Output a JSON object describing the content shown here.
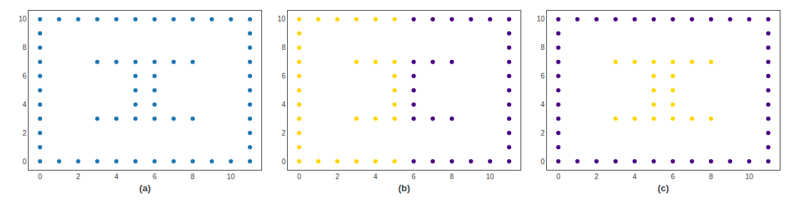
{
  "chart_data": [
    {
      "type": "scatter",
      "xlabel": "(a)",
      "series": [
        {
          "color": "#1f77b4",
          "marker": "circle",
          "x": [
            0,
            1,
            2,
            3,
            4,
            5,
            6,
            7,
            8,
            9,
            10,
            11,
            0,
            1,
            2,
            3,
            4,
            5,
            6,
            7,
            8,
            9,
            10,
            11,
            0,
            0,
            0,
            0,
            0,
            0,
            0,
            0,
            0,
            11,
            11,
            11,
            11,
            11,
            11,
            11,
            11,
            11,
            3,
            4,
            5,
            6,
            7,
            8,
            5,
            6,
            5,
            6,
            5,
            6,
            3,
            4,
            5,
            6,
            7,
            8
          ],
          "values": [
            0,
            0,
            0,
            0,
            0,
            0,
            0,
            0,
            0,
            0,
            0,
            0,
            10,
            10,
            10,
            10,
            10,
            10,
            10,
            10,
            10,
            10,
            10,
            10,
            1,
            2,
            3,
            4,
            5,
            6,
            7,
            8,
            9,
            1,
            2,
            3,
            4,
            5,
            6,
            7,
            8,
            9,
            7,
            7,
            7,
            7,
            7,
            7,
            6,
            6,
            5,
            5,
            4,
            4,
            3,
            3,
            3,
            3,
            3,
            3
          ]
        }
      ],
      "xlim": [
        -0.6,
        11.6
      ],
      "ylim": [
        -0.6,
        10.6
      ],
      "xticks": [
        0,
        2,
        4,
        6,
        8,
        10
      ],
      "yticks": [
        0,
        2,
        4,
        6,
        8,
        10
      ],
      "grid": false
    },
    {
      "type": "scatter",
      "xlabel": "(b)",
      "series": [
        {
          "color": "#FFD700",
          "marker": "circle",
          "x": [
            0,
            1,
            2,
            3,
            4,
            5,
            0,
            1,
            2,
            3,
            4,
            5,
            0,
            0,
            0,
            0,
            0,
            0,
            0,
            0,
            0,
            3,
            4,
            5,
            5,
            5,
            5,
            3,
            4,
            5
          ],
          "values": [
            0,
            0,
            0,
            0,
            0,
            0,
            10,
            10,
            10,
            10,
            10,
            10,
            1,
            2,
            3,
            4,
            5,
            6,
            7,
            8,
            9,
            7,
            7,
            7,
            6,
            5,
            4,
            3,
            3,
            3
          ]
        },
        {
          "color": "#4B0082",
          "marker": "circle",
          "x": [
            6,
            7,
            8,
            9,
            10,
            11,
            6,
            7,
            8,
            9,
            10,
            11,
            11,
            11,
            11,
            11,
            11,
            11,
            11,
            11,
            11,
            6,
            7,
            8,
            6,
            6,
            6,
            6,
            7,
            8
          ],
          "values": [
            0,
            0,
            0,
            0,
            0,
            0,
            10,
            10,
            10,
            10,
            10,
            10,
            1,
            2,
            3,
            4,
            5,
            6,
            7,
            8,
            9,
            7,
            7,
            7,
            6,
            5,
            4,
            3,
            3,
            3
          ]
        }
      ],
      "xlim": [
        -0.6,
        11.6
      ],
      "ylim": [
        -0.6,
        10.6
      ],
      "xticks": [
        0,
        2,
        4,
        6,
        8,
        10
      ],
      "yticks": [
        0,
        2,
        4,
        6,
        8,
        10
      ],
      "grid": false
    },
    {
      "type": "scatter",
      "xlabel": "(c)",
      "series": [
        {
          "color": "#FFD700",
          "marker": "circle",
          "x": [
            3,
            4,
            5,
            6,
            7,
            8,
            5,
            6,
            5,
            6,
            5,
            6,
            3,
            4,
            5,
            6,
            7,
            8
          ],
          "values": [
            7,
            7,
            7,
            7,
            7,
            7,
            6,
            6,
            5,
            5,
            4,
            4,
            3,
            3,
            3,
            3,
            3,
            3
          ]
        },
        {
          "color": "#4B0082",
          "marker": "circle",
          "x": [
            0,
            1,
            2,
            3,
            4,
            5,
            6,
            7,
            8,
            9,
            10,
            11,
            0,
            1,
            2,
            3,
            4,
            5,
            6,
            7,
            8,
            9,
            10,
            11,
            0,
            0,
            0,
            0,
            0,
            0,
            0,
            0,
            0,
            11,
            11,
            11,
            11,
            11,
            11,
            11,
            11,
            11
          ],
          "values": [
            0,
            0,
            0,
            0,
            0,
            0,
            0,
            0,
            0,
            0,
            0,
            0,
            10,
            10,
            10,
            10,
            10,
            10,
            10,
            10,
            10,
            10,
            10,
            10,
            1,
            2,
            3,
            4,
            5,
            6,
            7,
            8,
            9,
            1,
            2,
            3,
            4,
            5,
            6,
            7,
            8,
            9
          ]
        }
      ],
      "xlim": [
        -0.6,
        11.6
      ],
      "ylim": [
        -0.6,
        10.6
      ],
      "xticks": [
        0,
        2,
        4,
        6,
        8,
        10
      ],
      "yticks": [
        0,
        2,
        4,
        6,
        8,
        10
      ],
      "grid": false
    }
  ]
}
